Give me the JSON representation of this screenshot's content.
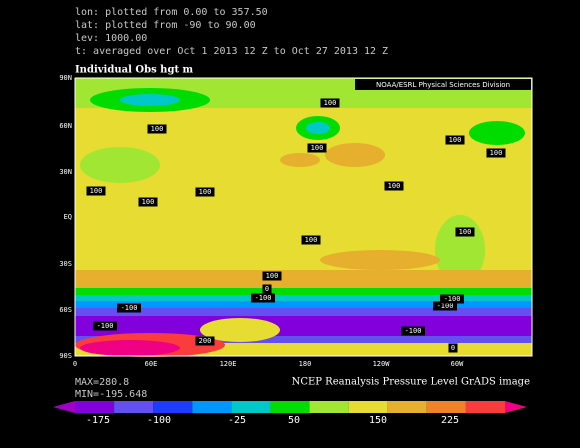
{
  "header": {
    "lines": [
      "lon: plotted from  0.00 to 357.50",
      "lat: plotted from -90 to 90.00",
      "lev: 1000.00",
      "t: averaged over Oct 1 2013 12 Z to Oct 27 2013 12 Z"
    ]
  },
  "map": {
    "title": "Individual Obs hgt m",
    "credit": "NOAA/ESRL Physical Sciences Division",
    "lat_labels": [
      "90N",
      "60N",
      "30N",
      "EQ",
      "30S",
      "60S",
      "90S"
    ],
    "lon_labels": [
      "0",
      "60E",
      "120E",
      "180",
      "120W",
      "60W"
    ],
    "contour_labels": [
      "100",
      "100",
      "100",
      "100",
      "100",
      "100",
      "100",
      "100",
      "100",
      "100",
      "100",
      "100",
      "0",
      "-100",
      "-100",
      "-100",
      "-100",
      "-100",
      "0",
      "200",
      "-100"
    ]
  },
  "stats": {
    "max": "MAX=280.8",
    "min": "MIN=-195.648"
  },
  "footer": "NCEP Reanalysis Pressure Level GrADS image",
  "colorbar": {
    "labels": [
      "-175",
      "-100",
      "-25",
      "50",
      "150",
      "225"
    ]
  }
}
